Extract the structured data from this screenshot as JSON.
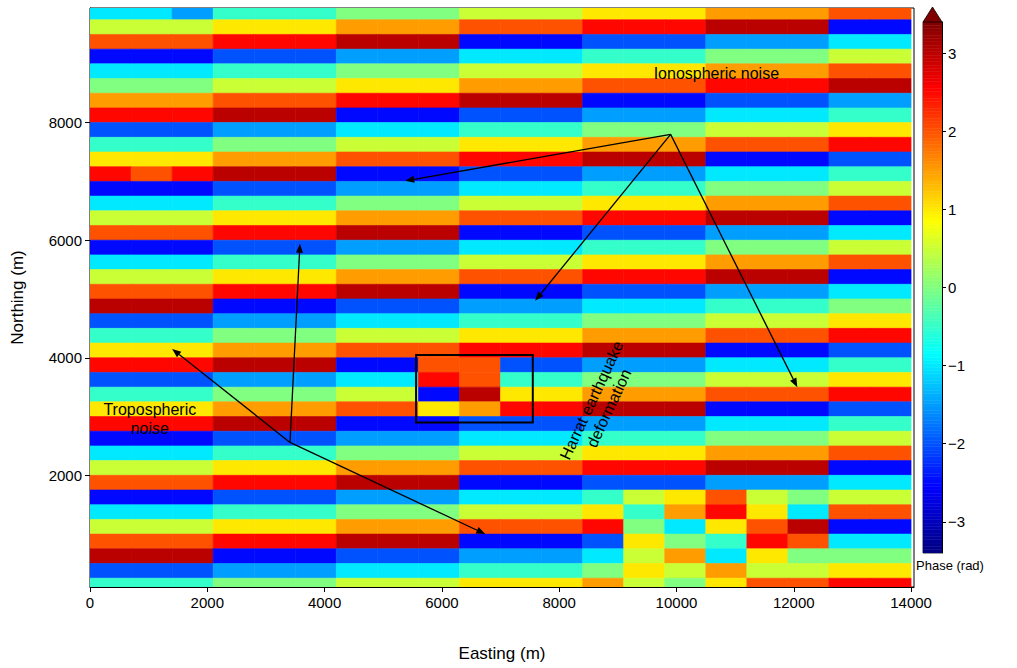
{
  "chart_data": {
    "type": "heatmap",
    "xlabel": "Easting (m)",
    "ylabel": "Northing (m)",
    "xlim": [
      0,
      14050
    ],
    "ylim": [
      100,
      9950
    ],
    "xticks": [
      0,
      2000,
      4000,
      6000,
      8000,
      10000,
      12000,
      14000
    ],
    "yticks": [
      2000,
      4000,
      6000,
      8000
    ],
    "grid": false,
    "x_edges": [
      0,
      700,
      1400,
      2100,
      2800,
      3500,
      4200,
      4900,
      5600,
      6300,
      7000,
      7700,
      8400,
      9100,
      9800,
      10500,
      11200,
      11900,
      12600,
      13300,
      14000
    ],
    "y_edges": [
      10000,
      9750,
      9500,
      9250,
      9000,
      8750,
      8500,
      8250,
      8000,
      7750,
      7500,
      7250,
      7000,
      6750,
      6500,
      6250,
      6000,
      5750,
      5500,
      5250,
      5000,
      4750,
      4500,
      4250,
      4000,
      3750,
      3500,
      3250,
      3000,
      2750,
      2500,
      2250,
      2000,
      1750,
      1500,
      1250,
      1000,
      750,
      500,
      250,
      0
    ],
    "cells": [
      [
        -1,
        -1,
        -1.5,
        -0.5,
        -0.5,
        -0.5,
        0,
        0,
        0,
        0.5,
        0.5,
        0.5,
        1,
        1,
        1,
        1.5,
        1.5,
        1.5,
        2,
        2
      ],
      [
        0.5,
        0.5,
        0.5,
        1,
        1,
        1,
        1.5,
        1.5,
        1.5,
        2,
        2,
        2,
        2.5,
        2.5,
        2.5,
        3,
        3,
        3,
        -2.5,
        -2.5
      ],
      [
        2,
        2,
        2,
        2.5,
        2.5,
        2.5,
        3,
        3,
        3,
        -2.5,
        -2.5,
        -2.5,
        -2,
        -2,
        -2,
        -1.5,
        -1.5,
        -1.5,
        -1,
        -1
      ],
      [
        -2.5,
        -2.5,
        -2.5,
        -2,
        -2,
        -2,
        -1.5,
        -1.5,
        -1.5,
        -1,
        -1,
        -1,
        -0.5,
        -0.5,
        -0.5,
        0,
        0,
        0,
        0.5,
        0.5
      ],
      [
        -1,
        -1,
        -1,
        -0.5,
        -0.5,
        -0.5,
        0,
        0,
        0,
        0.5,
        0.5,
        0.5,
        1,
        1,
        1,
        1.5,
        1.5,
        1.5,
        2,
        2
      ],
      [
        0,
        0,
        0,
        0.5,
        0.5,
        0.5,
        1,
        1,
        1,
        1.5,
        1.5,
        1.5,
        2,
        2,
        2,
        2.5,
        2.5,
        2.5,
        3,
        3
      ],
      [
        1.5,
        1.5,
        1.5,
        2,
        2,
        2,
        2.5,
        2.5,
        2.5,
        3,
        3,
        3,
        -2.5,
        -2.5,
        -2.5,
        -2,
        -2,
        -2,
        -1.5,
        -1.5
      ],
      [
        2.5,
        2.5,
        2.5,
        3,
        3,
        3,
        -2.5,
        -2.5,
        -2.5,
        -2,
        -2,
        -2,
        -1.5,
        -1.5,
        -1.5,
        -1,
        -1,
        -1,
        -0.5,
        -0.5
      ],
      [
        -2,
        -2,
        -2,
        -1.5,
        -1.5,
        -1.5,
        -1,
        -1,
        -1,
        -0.5,
        -0.5,
        -0.5,
        0,
        0,
        0,
        0.5,
        0.5,
        0.5,
        1,
        1
      ],
      [
        -0.5,
        -0.5,
        -0.5,
        0,
        0,
        0,
        0.5,
        0.5,
        0.5,
        1,
        1,
        1,
        1.5,
        1.5,
        1.5,
        2,
        2,
        2,
        2.5,
        2.5
      ],
      [
        1,
        1,
        1,
        1.5,
        1.5,
        1.5,
        2,
        2,
        2,
        2.5,
        2.5,
        2.5,
        3,
        3,
        3,
        -2.5,
        -2.5,
        -2.5,
        -2,
        -2
      ],
      [
        2.5,
        2,
        2.5,
        3,
        3,
        3,
        -2.5,
        -2.5,
        -2.5,
        -2,
        -2,
        -2,
        -1.5,
        -1.5,
        -1.5,
        -1,
        -1,
        -1,
        -0.5,
        -0.5
      ],
      [
        -2.5,
        -2.5,
        -2.5,
        -2,
        -2,
        -2,
        -1.5,
        -1.5,
        -1.5,
        -1,
        -1,
        -1,
        -0.5,
        -0.5,
        -0.5,
        0,
        0,
        0,
        0.5,
        0.5
      ],
      [
        -1,
        -1,
        -1,
        -0.5,
        -0.5,
        -0.5,
        0,
        0,
        0,
        0.5,
        0.5,
        0.5,
        1,
        1,
        1,
        1.5,
        1.5,
        1.5,
        2,
        2
      ],
      [
        0.5,
        0.5,
        0.5,
        1,
        1,
        1,
        1.5,
        1.5,
        1.5,
        2,
        2,
        2,
        2.5,
        2.5,
        2.5,
        3,
        3,
        3,
        -2.5,
        -2.5
      ],
      [
        2,
        2,
        2,
        2.5,
        2.5,
        2.5,
        3,
        3,
        3,
        -2.5,
        -2.5,
        -2.5,
        -2,
        -2,
        -2,
        -1.5,
        -1.5,
        -1.5,
        -1,
        -1
      ],
      [
        -2.5,
        -2.5,
        -2.5,
        -2,
        -2,
        -2,
        -1.5,
        -1.5,
        -1.5,
        -1,
        -1,
        -1,
        -0.5,
        -0.5,
        -0.5,
        0,
        0,
        0,
        0.5,
        0.5
      ],
      [
        -1,
        -1,
        -1,
        -0.5,
        -0.5,
        -0.5,
        0,
        0,
        0,
        0.5,
        0.5,
        0.5,
        1,
        1,
        1,
        1.5,
        1.5,
        1.5,
        2,
        2
      ],
      [
        0.5,
        0.5,
        0.5,
        1,
        1,
        1,
        1.5,
        1.5,
        1.5,
        2,
        2,
        2,
        2.5,
        2.5,
        2.5,
        3,
        3,
        3,
        -2.5,
        -2.5
      ],
      [
        2,
        2,
        2,
        2.5,
        2.5,
        2.5,
        3,
        3,
        3,
        -2.5,
        -2.5,
        -2.5,
        -2,
        -2,
        -2,
        -1.5,
        -1.5,
        -1.5,
        -1,
        -1
      ],
      [
        3,
        3,
        3,
        -2.5,
        -2.5,
        -2.5,
        -2,
        -2,
        -2,
        -1.5,
        -1.5,
        -1.5,
        -1,
        -1,
        -1,
        -0.5,
        -0.5,
        -0.5,
        0,
        0
      ],
      [
        -2,
        -2,
        -2,
        -1.5,
        -1.5,
        -1.5,
        -1,
        -1,
        -1,
        -0.5,
        -0.5,
        -0.5,
        0,
        0,
        0,
        0.5,
        0.5,
        0.5,
        1,
        1
      ],
      [
        -0.5,
        -0.5,
        -0.5,
        0,
        0,
        0,
        0.5,
        0.5,
        0.5,
        1,
        1,
        1,
        1.5,
        1.5,
        1.5,
        2,
        2,
        2,
        2.5,
        2.5
      ],
      [
        1,
        1,
        1,
        1.5,
        1.5,
        1.5,
        2,
        2,
        2,
        2.5,
        2.5,
        2.5,
        3,
        3,
        3,
        -2.5,
        -2.5,
        -2.5,
        -2,
        -2
      ],
      [
        2.5,
        2.5,
        2.5,
        3,
        3,
        3,
        -2.5,
        -2.5,
        2,
        2,
        -2,
        -2,
        -1.5,
        -1.5,
        -1.5,
        -1,
        -1,
        -1,
        -0.5,
        -0.5
      ],
      [
        -2,
        -2,
        -2,
        -1.5,
        -1.5,
        -1.5,
        -1,
        -1,
        2.5,
        2,
        -0.5,
        -0.5,
        0,
        0,
        0,
        0.5,
        0.5,
        0.5,
        1,
        1
      ],
      [
        -0.5,
        -0.5,
        -0.5,
        0,
        0,
        0,
        0.5,
        0.5,
        -2.5,
        3,
        1,
        1,
        1.5,
        1.5,
        1.5,
        2,
        2,
        2,
        2.5,
        2.5
      ],
      [
        1,
        1,
        1,
        1.5,
        1.5,
        1.5,
        2,
        2,
        1,
        1.5,
        2.5,
        2.5,
        3,
        3,
        3,
        -2.5,
        -2.5,
        -2.5,
        -2,
        -2
      ],
      [
        2.5,
        2.5,
        2.5,
        3,
        3,
        3,
        -2.5,
        -2.5,
        -2.5,
        -2,
        -2,
        -2,
        -1.5,
        -1.5,
        -1.5,
        -1,
        -1,
        -1,
        -0.5,
        -0.5
      ],
      [
        -2.5,
        -2.5,
        -2.5,
        -2,
        -2,
        -2,
        -1.5,
        -1.5,
        -1.5,
        -1,
        -1,
        -1,
        -0.5,
        -0.5,
        -0.5,
        0,
        0,
        0,
        0.5,
        0.5
      ],
      [
        -1,
        -1,
        -1,
        -0.5,
        -0.5,
        -0.5,
        0,
        0,
        0,
        0.5,
        0.5,
        0.5,
        1,
        1,
        1,
        1.5,
        1.5,
        1.5,
        2,
        2
      ],
      [
        0.5,
        0.5,
        0.5,
        1,
        1,
        1,
        1.5,
        1.5,
        1.5,
        2,
        2,
        2,
        2.5,
        2.5,
        2.5,
        3,
        3,
        3,
        -2.5,
        -2.5
      ],
      [
        2,
        2,
        2,
        2.5,
        2.5,
        2.5,
        3,
        3,
        3,
        -2.5,
        -2.5,
        -2.5,
        -2,
        -2,
        -2,
        -1.5,
        -1.5,
        -1.5,
        -1,
        -1
      ],
      [
        -2.5,
        -2.5,
        -2.5,
        -2,
        -2,
        -2,
        -1.5,
        -1.5,
        -1.5,
        -1,
        -1,
        -1,
        -0.5,
        0.5,
        1,
        2,
        0.5,
        0,
        0.5,
        0.5
      ],
      [
        -1,
        -1,
        -1,
        -0.5,
        -0.5,
        -0.5,
        0,
        0,
        0,
        0.5,
        0.5,
        0.5,
        1,
        -0.5,
        1.5,
        2.5,
        1,
        -1,
        2,
        2
      ],
      [
        0.5,
        0.5,
        0.5,
        1,
        1,
        1,
        1.5,
        1.5,
        1.5,
        2,
        2,
        2,
        2.5,
        0,
        -1,
        1,
        2,
        3,
        -2.5,
        -2.5
      ],
      [
        2,
        2,
        2,
        2.5,
        2.5,
        2.5,
        3,
        3,
        3,
        -2.5,
        -2.5,
        -2.5,
        -2,
        1,
        0,
        -0.5,
        2.5,
        2,
        -1,
        -1
      ],
      [
        3,
        3,
        3,
        -2.5,
        -2.5,
        -2.5,
        -2,
        -2,
        -2,
        -1.5,
        -1.5,
        -1.5,
        -1,
        0.5,
        1.5,
        -1,
        1,
        0,
        0,
        0
      ],
      [
        -2,
        -2,
        -2,
        -1.5,
        -1.5,
        -1.5,
        -1,
        -1,
        -1,
        -0.5,
        -0.5,
        -0.5,
        0,
        1,
        0.5,
        1.5,
        0.5,
        0.5,
        1,
        1
      ],
      [
        -0.5,
        -0.5,
        -0.5,
        0,
        0,
        0,
        0.5,
        0.5,
        0.5,
        1,
        1,
        1,
        1.5,
        0.5,
        0,
        1,
        2,
        2,
        2.5,
        2.5
      ]
    ],
    "colorbar": {
      "label": "Phase (rad)",
      "range": [
        -3.4,
        3.4
      ],
      "ticks": [
        {
          "value": -3,
          "label": "−3"
        },
        {
          "value": -2,
          "label": "−2"
        },
        {
          "value": -1,
          "label": "−1"
        },
        0,
        1,
        2,
        3
      ]
    },
    "annotations": [
      {
        "text": "Ionospheric noise",
        "x": 10680,
        "y": 8835,
        "from": [
          9900,
          7800
        ],
        "arrows": [
          [
            5375,
            7010
          ],
          [
            7590,
            4970
          ],
          [
            12060,
            3500
          ]
        ]
      },
      {
        "text": "Tropospheric\nnoise",
        "x": 1020,
        "y": 2950,
        "from": [
          3410,
          2560
        ],
        "arrows": [
          [
            1400,
            4150
          ],
          [
            3580,
            5940
          ],
          [
            6740,
            1000
          ]
        ]
      },
      {
        "text": "Harrat earthquake\ndeformation",
        "x": 8700,
        "y": 3210
      }
    ],
    "box": {
      "xlim": [
        5560,
        7550
      ],
      "ylim": [
        2900,
        4045
      ]
    }
  }
}
